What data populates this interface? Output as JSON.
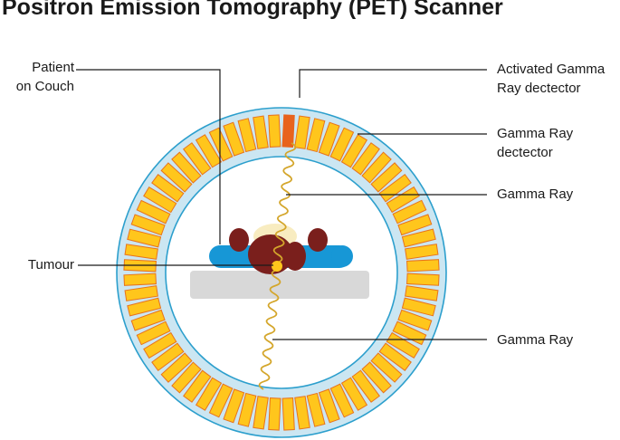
{
  "title": "Positron Emission Tomography (PET) Scanner",
  "labels": {
    "patient": "Patient\non Couch",
    "tumour": "Tumour",
    "activated_detector": "Activated Gamma\nRay dectector",
    "detector": "Gamma Ray\ndectector",
    "gamma_ray_upper": "Gamma Ray",
    "gamma_ray_lower": "Gamma Ray"
  },
  "colors": {
    "ring_fill": "#cbe6f2",
    "ring_stroke": "#2c9fcd",
    "detector_fill": "#ffc61c",
    "detector_stroke": "#e8731c",
    "activated_detector": "#e8631c",
    "gamma_ray": "#d4a62b",
    "patient_body": "#1797d6",
    "patient_organs": "#7a1f1c",
    "patient_head": "#f8ecc0",
    "tumour": "#ffc61c",
    "couch": "#d8d8d8",
    "leader_line": "#1a1a1a"
  }
}
